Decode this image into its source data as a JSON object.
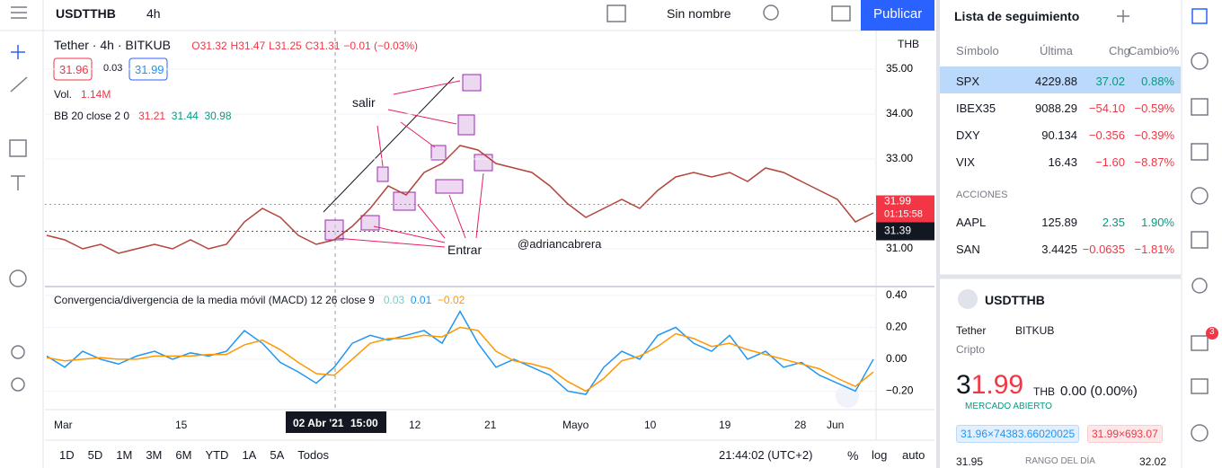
{
  "toolbar": {
    "symbol": "USDTTHB",
    "interval": "4h",
    "layout": "Sin nombre",
    "publish": "Publicar"
  },
  "legend": {
    "title": "Tether · 4h · BITKUB",
    "open": "O31.32",
    "high": "H31.47",
    "low": "L31.25",
    "close": "C31.31",
    "change": "−0.01 (−0.03%)",
    "bid": "31.96",
    "spread": "0.03",
    "ask": "31.99",
    "volume_label": "Vol.",
    "volume": "1.14M",
    "bb_label": "BB 20 close 2 0",
    "bb_basis": "31.21",
    "bb_upper": "31.44",
    "bb_lower": "30.98",
    "currency": "THB"
  },
  "annotations": [
    "salir",
    "Entrar",
    "@adriancabrera"
  ],
  "chart_data": [
    {
      "type": "line",
      "color": "#b2443a",
      "values": [
        31.3,
        31.2,
        31.0,
        31.1,
        30.9,
        31.0,
        31.1,
        31.0,
        31.2,
        31.0,
        31.1,
        31.6,
        31.9,
        31.7,
        31.3,
        31.1,
        31.2,
        31.5,
        31.9,
        32.4,
        32.2,
        32.7,
        32.9,
        33.3,
        33.2,
        32.9,
        32.8,
        32.7,
        32.4,
        32.0,
        31.7,
        31.9,
        32.1,
        31.9,
        32.3,
        32.6,
        32.7,
        32.6,
        32.7,
        32.5,
        32.8,
        32.7,
        32.5,
        32.3,
        32.1,
        31.6,
        31.8
      ],
      "ylim": [
        30.18,
        35.86
      ],
      "yticks": [
        {
          "value": 31,
          "label": "31.00"
        },
        {
          "value": 33,
          "label": "33.00"
        },
        {
          "value": 34,
          "label": "34.00"
        },
        {
          "value": 35,
          "label": "35.00"
        }
      ],
      "last_price": 31.99,
      "countdown": "01:15:58",
      "crosshair_price": 31.39
    },
    {
      "type": "line",
      "title": "Convergencia/divergencia de la media móvil (MACD) 12 26 close 9",
      "readouts": [
        "0.03",
        "0.01",
        "−0.02"
      ],
      "series": [
        {
          "color": "#2196f3",
          "values": [
            0.02,
            -0.05,
            0.05,
            0.0,
            -0.03,
            0.02,
            0.05,
            0.0,
            0.04,
            0.02,
            0.05,
            0.18,
            0.1,
            -0.02,
            -0.08,
            -0.15,
            -0.05,
            0.1,
            0.15,
            0.12,
            0.15,
            0.18,
            0.1,
            0.3,
            0.1,
            -0.05,
            0.0,
            -0.05,
            -0.1,
            -0.2,
            -0.22,
            -0.05,
            0.05,
            0.0,
            0.15,
            0.2,
            0.1,
            0.05,
            0.15,
            0.0,
            0.05,
            -0.05,
            -0.02,
            -0.1,
            -0.15,
            -0.2,
            0.0
          ]
        },
        {
          "color": "#ff9800",
          "values": [
            0.01,
            -0.01,
            0.0,
            0.01,
            0.0,
            0.0,
            0.02,
            0.02,
            0.02,
            0.03,
            0.03,
            0.09,
            0.12,
            0.06,
            -0.02,
            -0.09,
            -0.1,
            0.0,
            0.1,
            0.13,
            0.13,
            0.15,
            0.14,
            0.2,
            0.18,
            0.05,
            -0.01,
            -0.03,
            -0.06,
            -0.14,
            -0.2,
            -0.12,
            -0.01,
            0.02,
            0.08,
            0.16,
            0.13,
            0.08,
            0.1,
            0.06,
            0.03,
            0.0,
            -0.03,
            -0.06,
            -0.12,
            -0.17,
            -0.08
          ]
        }
      ],
      "ylim": [
        -0.31,
        0.45
      ],
      "yticks": [
        {
          "value": -0.2,
          "label": "−0.20"
        },
        {
          "value": 0,
          "label": "0.00"
        },
        {
          "value": 0.2,
          "label": "0.20"
        },
        {
          "value": 0.4,
          "label": "0.40"
        }
      ]
    }
  ],
  "time_axis": [
    "Mar",
    "15",
    "02 Abr '21",
    "15:00",
    "12",
    "21",
    "Mayo",
    "10",
    "19",
    "28",
    "Jun"
  ],
  "bottom_bar": {
    "ranges": [
      "1D",
      "5D",
      "1M",
      "3M",
      "6M",
      "YTD",
      "1A",
      "5A",
      "Todos"
    ],
    "clock": "21:44:02 (UTC+2)",
    "percent": "%",
    "log": "log",
    "auto": "auto"
  },
  "watchlist": {
    "title": "Lista de seguimiento",
    "columns": [
      "Símbolo",
      "Última",
      "Chg",
      "Cambio%"
    ],
    "rows": [
      [
        "SPX",
        "4229.88",
        "37.02",
        "0.88%"
      ],
      [
        "IBEX35",
        "9088.29",
        "−54.10",
        "−0.59%"
      ],
      [
        "DXY",
        "90.134",
        "−0.356",
        "−0.39%"
      ],
      [
        "VIX",
        "16.43",
        "−1.60",
        "−8.87%"
      ]
    ],
    "section": "ACCIONES",
    "stocks": [
      [
        "AAPL",
        "125.89",
        "2.35",
        "1.90%"
      ],
      [
        "SAN",
        "3.4425",
        "−0.0635",
        "−1.81%"
      ]
    ]
  },
  "details": {
    "symbol": "USDTTHB",
    "name": "Tether",
    "exchange": "BITKUB",
    "kind": "Cripto",
    "price_lead": "3",
    "price_tail": "1.99",
    "currency": "THB",
    "change": "0.00 (0.00%)",
    "status": "MERCADO ABIERTO",
    "bid": "31.96×74383.66020025",
    "ask": "31.99×693.07",
    "low": "31.95",
    "range_label": "RANGO DEL DÍA",
    "high": "32.02"
  },
  "notifications": "3"
}
